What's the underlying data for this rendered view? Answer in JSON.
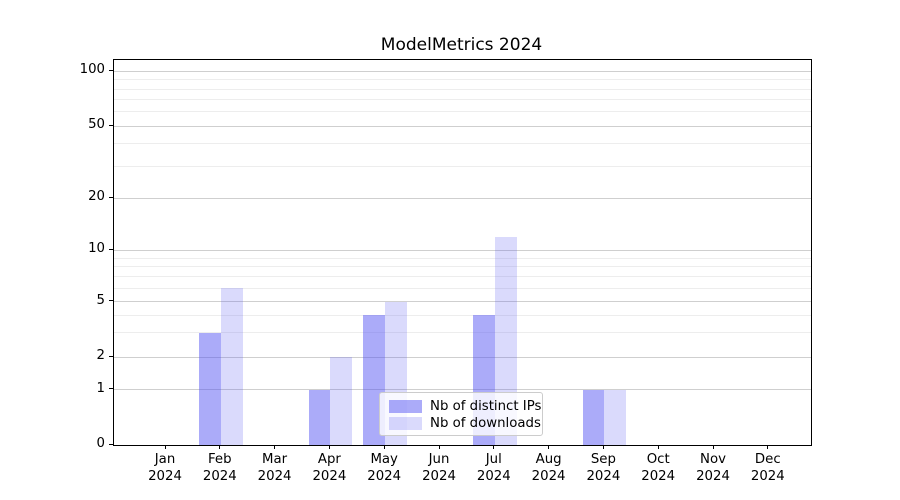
{
  "chart_data": {
    "type": "bar",
    "title": "ModelMetrics 2024",
    "categories": [
      "Jan",
      "Feb",
      "Mar",
      "Apr",
      "May",
      "Jun",
      "Jul",
      "Aug",
      "Sep",
      "Oct",
      "Nov",
      "Dec"
    ],
    "category_year": "2024",
    "series": [
      {
        "name": "Nb of distinct IPs",
        "color": "#5050f2",
        "alpha": 0.48,
        "values": [
          0,
          3,
          0,
          1,
          4,
          0,
          4,
          0,
          1,
          0,
          0,
          0
        ]
      },
      {
        "name": "Nb of downloads",
        "color": "#5050f2",
        "alpha": 0.21,
        "values": [
          0,
          6,
          0,
          2,
          5,
          0,
          12,
          0,
          1,
          0,
          0,
          0
        ]
      }
    ],
    "xlabel": "",
    "ylabel": "",
    "y_scale": "log-like",
    "ylim": [
      0,
      115
    ],
    "yticks": [
      0,
      1,
      2,
      5,
      10,
      20,
      50,
      100
    ],
    "y_minor_ticks": [
      3,
      4,
      6,
      7,
      8,
      9,
      30,
      40,
      60,
      70,
      80,
      90
    ],
    "grid": "horizontal major and minor",
    "legend_position": "lower center"
  },
  "colors": {
    "grid_major": "#cfcfcf",
    "grid_minor": "#ededed",
    "axis": "#000000",
    "text": "#000000",
    "legend_border": "#cccccc"
  }
}
